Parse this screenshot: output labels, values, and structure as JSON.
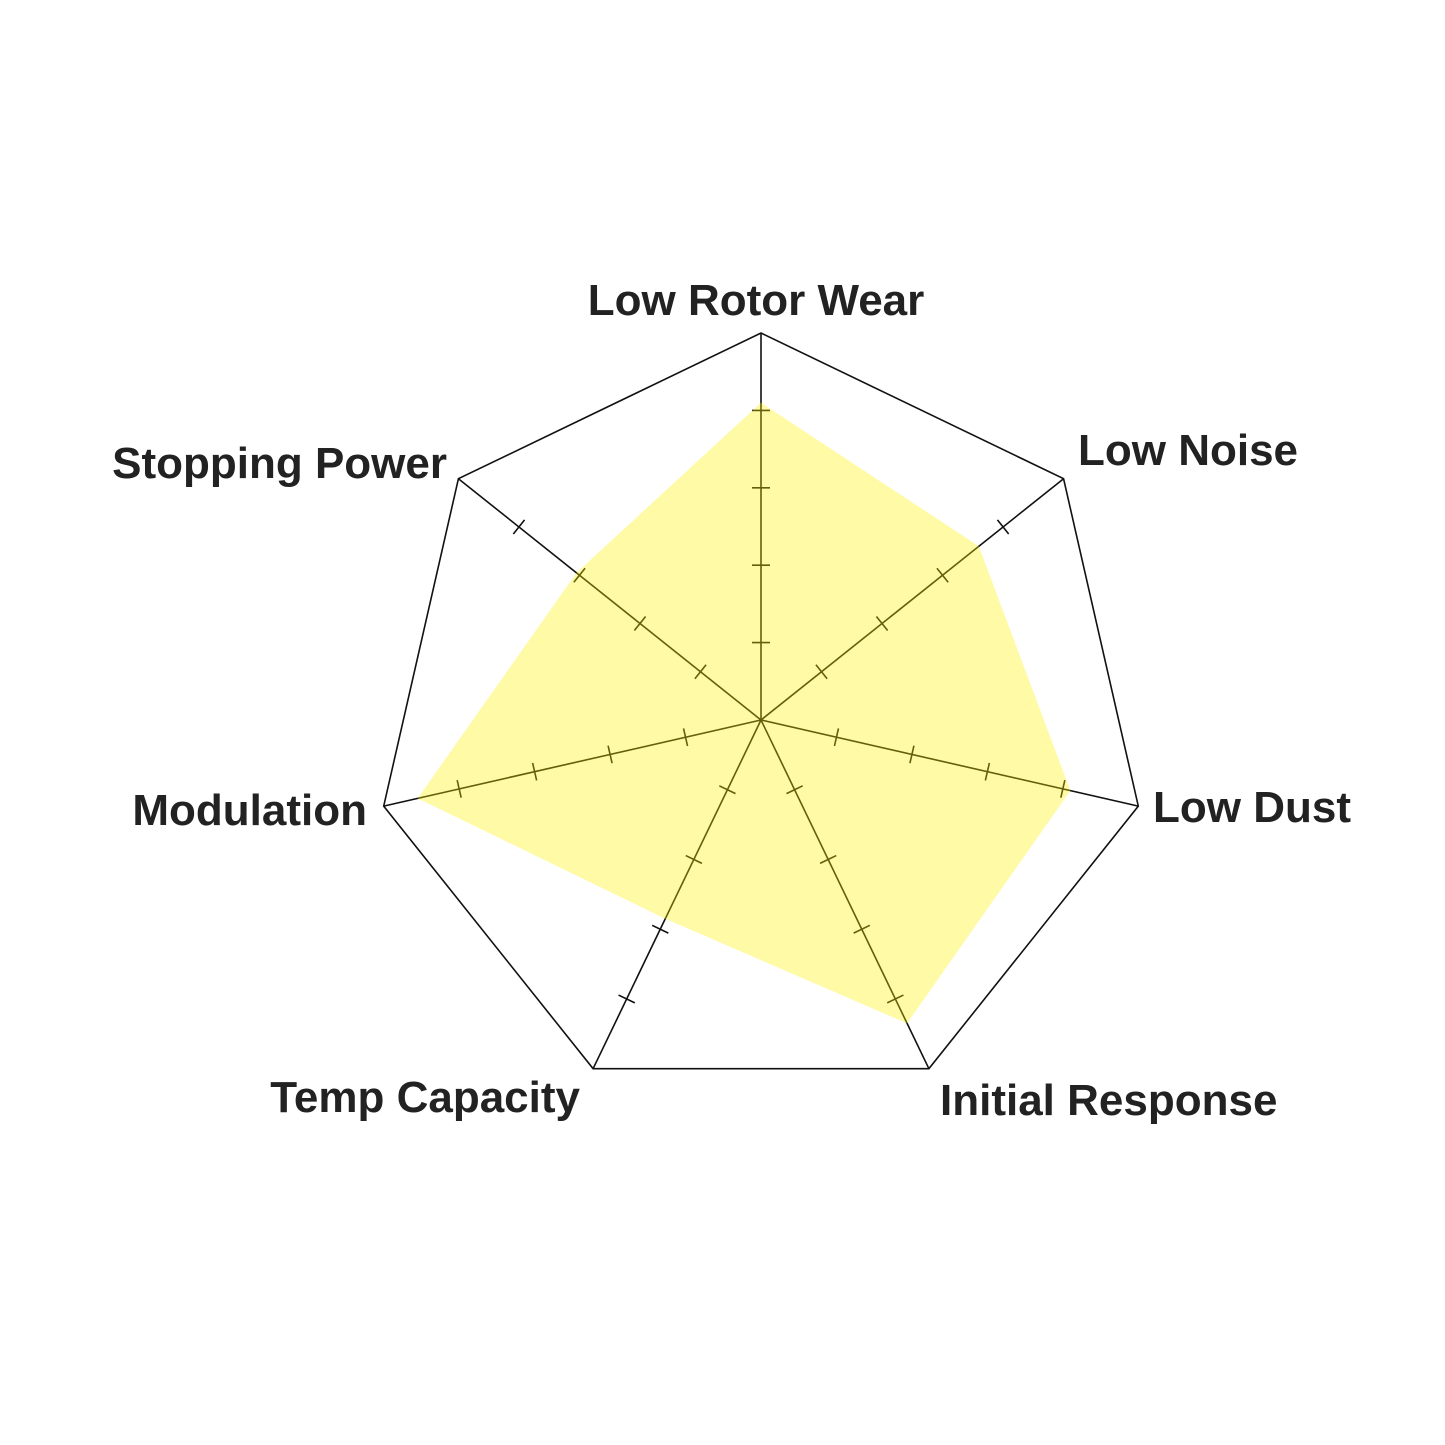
{
  "chart_data": {
    "type": "radar",
    "axes": [
      "Low Rotor Wear",
      "Low Noise",
      "Low Dust",
      "Initial Response",
      "Temp Capacity",
      "Modulation",
      "Stopping Power"
    ],
    "values": [
      4.1,
      3.6,
      4.1,
      4.35,
      2.85,
      4.55,
      3.05
    ],
    "range": [
      0,
      5
    ],
    "ticks": [
      1,
      2,
      3,
      4
    ],
    "grid": "outer polygon only",
    "fill_color": "#fff000",
    "line_color": "#111111"
  }
}
